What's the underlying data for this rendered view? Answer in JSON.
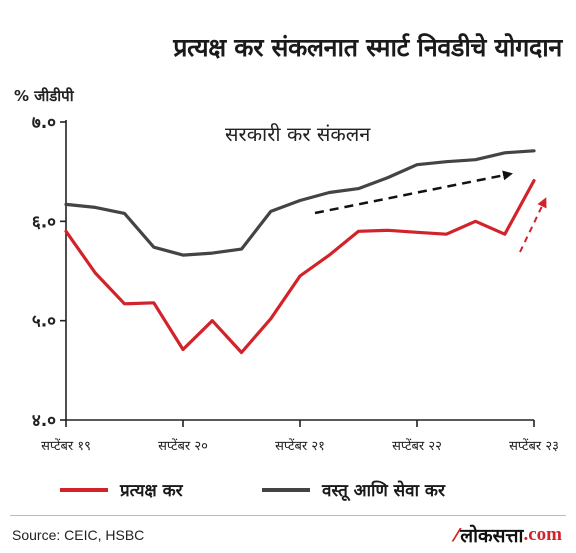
{
  "header": {
    "title": "प्रत्यक्ष कर संकलनात स्मार्ट निवडीचे योगदान"
  },
  "footer": {
    "source": "Source: CEIC, HSBC",
    "brand_name": "लोकसत्ता",
    "brand_tld": ".com"
  },
  "chart_data": {
    "type": "line",
    "ylabel": "% जीडीपी",
    "ylim": [
      4.0,
      7.0
    ],
    "yticks": [
      {
        "value": 4.0,
        "label": "४.०"
      },
      {
        "value": 5.0,
        "label": "५.०"
      },
      {
        "value": 6.0,
        "label": "६.०"
      },
      {
        "value": 7.0,
        "label": "७.०"
      }
    ],
    "x_count": 17,
    "xticks": [
      {
        "index": 0,
        "label": "सप्टेंबर १९"
      },
      {
        "index": 4,
        "label": "सप्टेंबर २०"
      },
      {
        "index": 8,
        "label": "सप्टेंबर २१"
      },
      {
        "index": 12,
        "label": "सप्टेंबर २२"
      },
      {
        "index": 16,
        "label": "सप्टेंबर २३"
      }
    ],
    "series": [
      {
        "name": "प्रत्यक्ष कर",
        "color": "#d2232a",
        "values": [
          5.9,
          5.48,
          5.17,
          5.18,
          4.71,
          5.0,
          4.68,
          5.02,
          5.45,
          5.66,
          5.9,
          5.91,
          5.89,
          5.87,
          6.0,
          5.87,
          6.41
        ]
      },
      {
        "name": "वस्तू आणि सेवा कर",
        "color": "#444444",
        "values": [
          6.17,
          6.14,
          6.08,
          5.74,
          5.66,
          5.68,
          5.72,
          6.1,
          6.21,
          6.29,
          6.33,
          6.44,
          6.57,
          6.6,
          6.62,
          6.69,
          6.71
        ]
      }
    ],
    "annotations": {
      "gst_label": "सरकारी कर संकलन"
    },
    "grid": false,
    "legend": "bottom"
  }
}
